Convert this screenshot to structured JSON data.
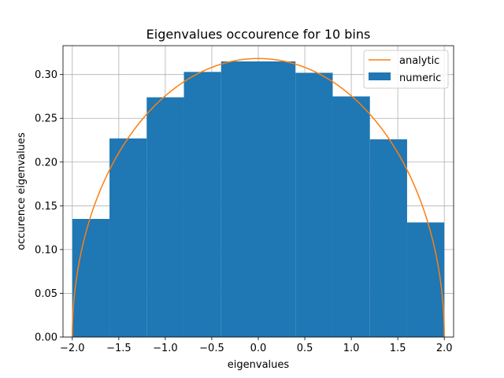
{
  "chart_data": {
    "type": "bar",
    "title": "Eigenvalues occourence for 10 bins",
    "xlabel": "eigenvalues",
    "ylabel": "occurence eigenvalues",
    "xlim": [
      -2.1,
      2.1
    ],
    "ylim": [
      0.0,
      0.333
    ],
    "xticks": [
      -2.0,
      -1.5,
      -1.0,
      -0.5,
      0.0,
      0.5,
      1.0,
      1.5,
      2.0
    ],
    "xtick_labels": [
      "−2.0",
      "−1.5",
      "−1.0",
      "−0.5",
      "0.0",
      "0.5",
      "1.0",
      "1.5",
      "2.0"
    ],
    "yticks": [
      0.0,
      0.05,
      0.1,
      0.15,
      0.2,
      0.25,
      0.3
    ],
    "ytick_labels": [
      "0.00",
      "0.05",
      "0.10",
      "0.15",
      "0.20",
      "0.25",
      "0.30"
    ],
    "grid": true,
    "legend": {
      "position": "top-right",
      "entries": [
        "analytic",
        "numeric"
      ]
    },
    "histogram": {
      "name": "numeric",
      "bin_edges": [
        -2.0,
        -1.6,
        -1.2,
        -0.8,
        -0.4,
        0.0,
        0.4,
        0.8,
        1.2,
        1.6,
        2.0
      ],
      "values": [
        0.135,
        0.227,
        0.274,
        0.303,
        0.315,
        0.315,
        0.302,
        0.275,
        0.226,
        0.131
      ],
      "color": "#1f77b4"
    },
    "curve": {
      "name": "analytic",
      "function": "sqrt(4 - x^2) / (2*pi)",
      "domain": [
        -2.0,
        2.0
      ],
      "color": "#ff7f0e"
    }
  }
}
